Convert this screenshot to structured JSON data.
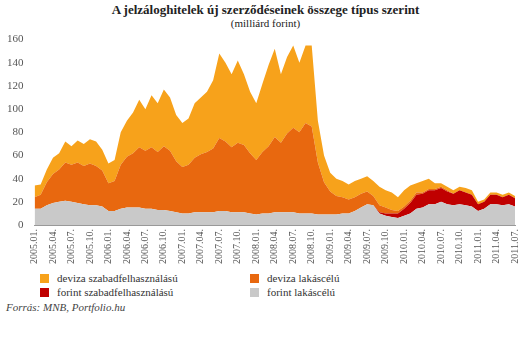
{
  "chart_data": {
    "type": "area",
    "title": "A jelzáloghitelek új szerződéseinek összege típus szerint",
    "subtitle": "(milliárd forint)",
    "source": "Forrás: MNB, Portfolio.hu",
    "categories": [
      "2005.01.",
      null,
      null,
      "2005.04.",
      null,
      null,
      "2005.07.",
      null,
      null,
      "2005.10.",
      null,
      null,
      "2006.01.",
      null,
      null,
      "2006.04.",
      null,
      null,
      "2006.07.",
      null,
      null,
      "2006.10.",
      null,
      null,
      "2007.01.",
      null,
      null,
      "2007.04.",
      null,
      null,
      "2007.07.",
      null,
      null,
      "2007.10.",
      null,
      null,
      "2008.01.",
      null,
      null,
      "2008.04.",
      null,
      null,
      "2008.07.",
      null,
      null,
      "2008.10.",
      null,
      null,
      "2009.01.",
      null,
      null,
      "2009.04.",
      null,
      null,
      "2009.07.",
      null,
      null,
      "2009.10.",
      null,
      null,
      "2010.01.",
      null,
      null,
      "2010.04.",
      null,
      null,
      "2010.07.",
      null,
      null,
      "2010.10.",
      null,
      null,
      "2011.01.",
      null,
      null,
      "2011.04.",
      null,
      null,
      "2011.07."
    ],
    "series": [
      {
        "name": "forint lakáscélú",
        "color": "#c9c9c9",
        "values": [
          14,
          14,
          17,
          19,
          20,
          21,
          20,
          19,
          18,
          17,
          17,
          16,
          12,
          12,
          14,
          15,
          15,
          15,
          14,
          14,
          13,
          13,
          12,
          11,
          10,
          10,
          11,
          11,
          11,
          11,
          12,
          12,
          11,
          11,
          11,
          10,
          9,
          10,
          10,
          11,
          11,
          11,
          11,
          10,
          10,
          10,
          9,
          9,
          9,
          9,
          10,
          10,
          12,
          15,
          18,
          17,
          10,
          8,
          7,
          6,
          8,
          10,
          14,
          15,
          18,
          18,
          20,
          18,
          17,
          18,
          17,
          16,
          12,
          14,
          18,
          18,
          17,
          18,
          16
        ]
      },
      {
        "name": "forint szabadfelhasználású",
        "color": "#c00000",
        "values": [
          0,
          0,
          0,
          0,
          0,
          0,
          0,
          0,
          0,
          0,
          0,
          0,
          0,
          0,
          0,
          0,
          0,
          0,
          0,
          0,
          0,
          0,
          0,
          0,
          0,
          0,
          0,
          0,
          0,
          0,
          0,
          0,
          0,
          0,
          0,
          0,
          0,
          0,
          0,
          0,
          0,
          0,
          0,
          0,
          0,
          0,
          0,
          0,
          0,
          0,
          0,
          0,
          0,
          0,
          0,
          0,
          1,
          2,
          3,
          4,
          6,
          9,
          12,
          12,
          12,
          12,
          12,
          11,
          10,
          12,
          11,
          10,
          6,
          6,
          8,
          8,
          7,
          8,
          7
        ]
      },
      {
        "name": "deviza lakáscélú",
        "color": "#e8680f",
        "values": [
          10,
          12,
          20,
          25,
          28,
          33,
          32,
          35,
          33,
          36,
          34,
          31,
          24,
          26,
          38,
          44,
          47,
          52,
          50,
          53,
          50,
          55,
          52,
          44,
          40,
          42,
          47,
          50,
          52,
          55,
          63,
          60,
          56,
          60,
          58,
          52,
          47,
          53,
          58,
          65,
          60,
          68,
          73,
          70,
          78,
          75,
          45,
          28,
          20,
          16,
          14,
          12,
          12,
          12,
          11,
          8,
          6,
          5,
          3,
          2,
          2,
          2,
          2,
          1,
          1,
          1,
          1,
          1,
          0,
          0,
          0,
          0,
          0,
          0,
          0,
          0,
          0,
          0,
          0
        ]
      },
      {
        "name": "deviza szabadfelhasználású",
        "color": "#f7a21b",
        "values": [
          10,
          9,
          11,
          14,
          14,
          18,
          16,
          19,
          19,
          21,
          21,
          18,
          17,
          18,
          28,
          31,
          35,
          41,
          36,
          45,
          42,
          49,
          46,
          40,
          38,
          40,
          47,
          49,
          52,
          59,
          73,
          68,
          63,
          71,
          61,
          53,
          49,
          59,
          70,
          76,
          59,
          66,
          71,
          60,
          67,
          70,
          36,
          23,
          16,
          15,
          14,
          13,
          14,
          13,
          13,
          13,
          16,
          15,
          15,
          12,
          14,
          13,
          8,
          10,
          9,
          5,
          3,
          3,
          3,
          3,
          4,
          4,
          2,
          2,
          2,
          2,
          2,
          2,
          2
        ]
      }
    ],
    "stacked": true,
    "ylim": [
      0,
      160
    ],
    "yticks": [
      0,
      20,
      40,
      60,
      80,
      100,
      120,
      140,
      160
    ],
    "grid": false,
    "legend": "bottom"
  }
}
